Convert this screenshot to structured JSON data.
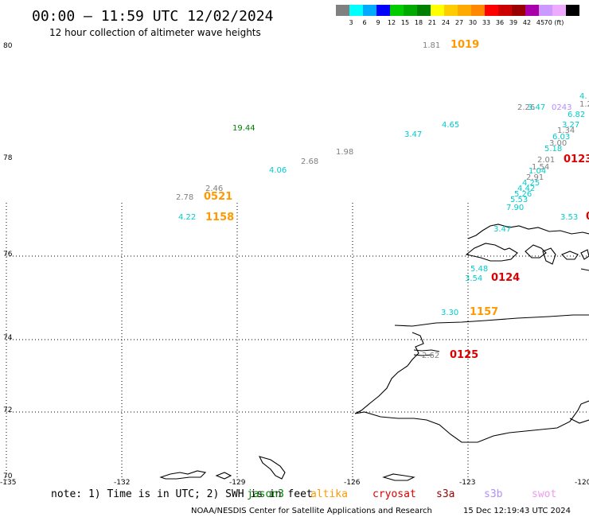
{
  "header": {
    "title": "00:00 – 11:59 UTC 12/02/2024",
    "subtitle": "12 hour collection of altimeter wave heights"
  },
  "legend": {
    "colors": [
      "#808080",
      "#00ffff",
      "#00aaff",
      "#0000ff",
      "#00cc00",
      "#00aa00",
      "#008000",
      "#ffff00",
      "#ffcc00",
      "#ffaa00",
      "#ff8800",
      "#ff0000",
      "#cc0000",
      "#990000",
      "#aa00aa",
      "#cc99ff",
      "#eeaaff",
      "#000000"
    ],
    "labels": [
      "3",
      "6",
      "9",
      "12",
      "15",
      "18",
      "21",
      "24",
      "27",
      "30",
      "33",
      "36",
      "39",
      "42",
      "45",
      "70 (ft)"
    ]
  },
  "axes": {
    "lat_labels": [
      "80",
      "78",
      "76",
      "74",
      "72",
      "70"
    ],
    "lon_labels": [
      "-135",
      "-132",
      "-129",
      "-126",
      "-123",
      "-120"
    ]
  },
  "observations": [
    {
      "text": "1.81",
      "color": "#808080"
    },
    {
      "text": "1019",
      "color": "#ff9900",
      "bold": true
    },
    {
      "text": "19.44",
      "color": "#008000"
    },
    {
      "text": "3.47",
      "color": "#00cccc"
    },
    {
      "text": "4.65",
      "color": "#00cccc"
    },
    {
      "text": "2.26",
      "color": "#808080"
    },
    {
      "text": "3.47",
      "color": "#00cccc"
    },
    {
      "text": "0243",
      "color": "#b38cff"
    },
    {
      "text": "4.",
      "color": "#00cccc"
    },
    {
      "text": "1.2",
      "color": "#808080"
    },
    {
      "text": "6.82",
      "color": "#00cccc"
    },
    {
      "text": "3.27",
      "color": "#00cccc"
    },
    {
      "text": "1.34",
      "color": "#808080"
    },
    {
      "text": "6.03",
      "color": "#00cccc"
    },
    {
      "text": "3.00",
      "color": "#808080"
    },
    {
      "text": "5.18",
      "color": "#00cccc"
    },
    {
      "text": "1.98",
      "color": "#808080"
    },
    {
      "text": "2.68",
      "color": "#808080"
    },
    {
      "text": "4.06",
      "color": "#00cccc"
    },
    {
      "text": "2.01",
      "color": "#808080"
    },
    {
      "text": "0123",
      "color": "#dd0000",
      "bold": true
    },
    {
      "text": "1.54",
      "color": "#808080"
    },
    {
      "text": "1.04",
      "color": "#00cccc"
    },
    {
      "text": "2.91",
      "color": "#808080"
    },
    {
      "text": "4.25",
      "color": "#00cccc"
    },
    {
      "text": "4.42",
      "color": "#00cccc"
    },
    {
      "text": "5.26",
      "color": "#00cccc"
    },
    {
      "text": "5.53",
      "color": "#00cccc"
    },
    {
      "text": "7.90",
      "color": "#00cccc"
    },
    {
      "text": "2.46",
      "color": "#808080"
    },
    {
      "text": "2.78",
      "color": "#808080"
    },
    {
      "text": "0521",
      "color": "#ff9900",
      "bold": true
    },
    {
      "text": "4.22",
      "color": "#00cccc"
    },
    {
      "text": "1158",
      "color": "#ff9900",
      "bold": true
    },
    {
      "text": "3.53",
      "color": "#00cccc"
    },
    {
      "text": "0",
      "color": "#dd0000",
      "bold": true
    },
    {
      "text": "3.47",
      "color": "#00cccc"
    },
    {
      "text": "5.48",
      "color": "#00cccc"
    },
    {
      "text": "3.54",
      "color": "#00cccc"
    },
    {
      "text": "0124",
      "color": "#dd0000",
      "bold": true
    },
    {
      "text": "3.30",
      "color": "#00cccc"
    },
    {
      "text": "1157",
      "color": "#ff9900",
      "bold": true
    },
    {
      "text": "2.62",
      "color": "#808080"
    },
    {
      "text": "0125",
      "color": "#dd0000",
      "bold": true
    }
  ],
  "footer": {
    "note": "note:  1) Time is in UTC;  2) SWH is in feet",
    "satellites": [
      {
        "name": "jason3",
        "color": "#008000"
      },
      {
        "name": "altika",
        "color": "#ff9900"
      },
      {
        "name": "cryosat",
        "color": "#dd0000"
      },
      {
        "name": "s3a",
        "color": "#990000"
      },
      {
        "name": "s3b",
        "color": "#b38cff"
      },
      {
        "name": "swot",
        "color": "#ee99ee"
      }
    ],
    "credit": "NOAA/NESDIS Center for Satellite Applications and Research",
    "timestamp": "15 Dec 12:19:43 UTC 2024"
  }
}
